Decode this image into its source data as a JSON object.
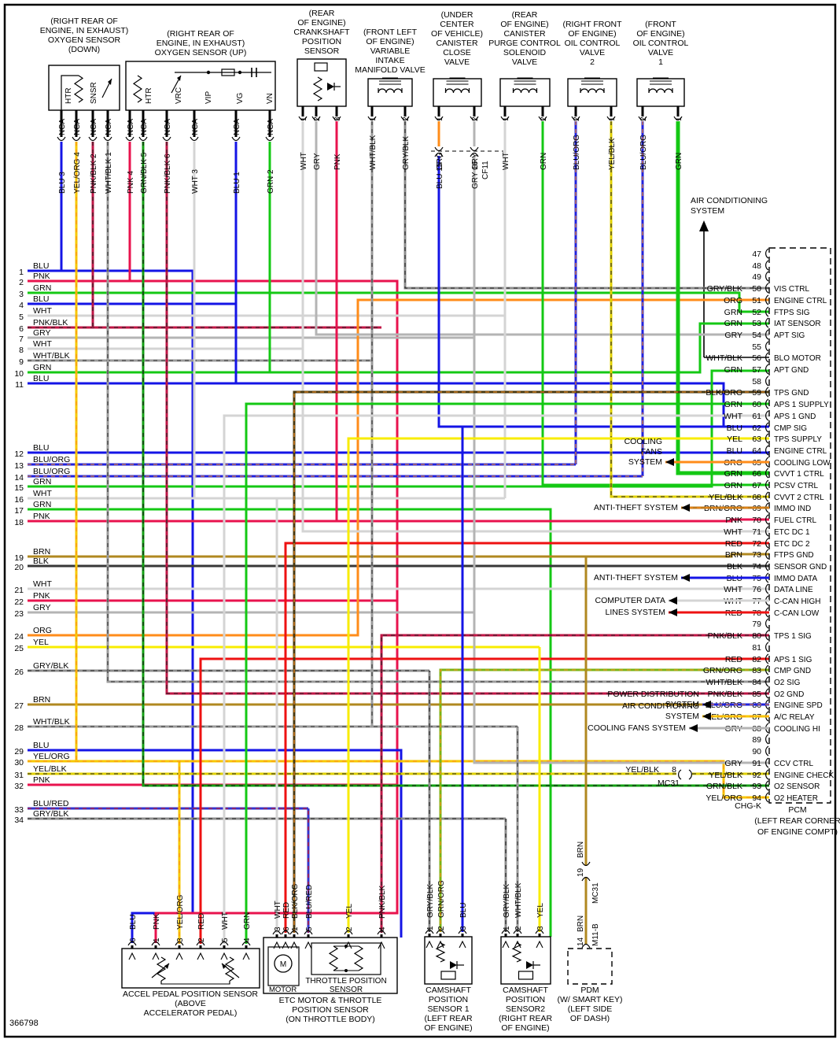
{
  "footer": {
    "id": "366798"
  },
  "colors": {
    "BLU": "#1414e6",
    "PNK": "#e8134e",
    "GRN": "#14c814",
    "WHT": "#d4d4d4",
    "GRY": "#b4b4b4",
    "BLK": "#383838",
    "RED": "#ee1111",
    "YEL": "#f8ec00",
    "ORG": "#ff8c1a",
    "BRN": "#b08820",
    "PNK/BLK": "#c01445",
    "WHT/BLK": "#9a9a9a",
    "GRY/BLK": "#8c8c8c",
    "BLU/ORG": "#2222dd",
    "BLU/RED": "#3333cc",
    "YEL/ORG": "#f6c800",
    "YEL/BLK": "#e0d000",
    "BLK/ORG": "#4a3a10",
    "BRN/ORG": "#c07818",
    "GRN/BLK": "#12a012",
    "GRN/ORG": "#7ab414"
  },
  "secondary": {
    "PNK/BLK": "#222222",
    "WHT/BLK": "#333333",
    "GRY/BLK": "#222222",
    "BLU/ORG": "#ff8c1a",
    "BLU/RED": "#dd1111",
    "YEL/ORG": "#ff8c1a",
    "YEL/BLK": "#222222",
    "BLK/ORG": "#ff8c1a",
    "BRN/ORG": "#ff8c1a",
    "GRN/BLK": "#111111",
    "GRN/ORG": "#ff8c1a"
  },
  "ac_system_top": {
    "lines": [
      "AIR CONDITIONING",
      "SYSTEM"
    ]
  },
  "top_components": [
    {
      "id": "o2down",
      "title": "(RIGHT REAR OF\nENGINE, IN EXHAUST)\nOXYGEN SENSOR\n(DOWN)",
      "internal": [
        "HTR",
        "SNSR"
      ],
      "wires": [
        {
          "pin": "3",
          "color": "BLU",
          "conn": "NCA"
        },
        {
          "pin": "4",
          "color": "YEL/ORG",
          "conn": "NCA"
        },
        {
          "pin": "2",
          "color": "PNK/BLK",
          "conn": "NCA"
        },
        {
          "pin": "1",
          "color": "WHT/BLK",
          "conn": "NCA"
        }
      ]
    },
    {
      "id": "o2up",
      "title": "(RIGHT REAR OF\nENGINE, IN EXHAUST)\nOXYGEN SENSOR (UP)",
      "internal": [
        "HTR",
        "VRC",
        "VIP",
        "VG",
        "VN"
      ],
      "wires": [
        {
          "pin": "4",
          "color": "PNK",
          "conn": "NCA"
        },
        {
          "pin": "5",
          "color": "GRN/BLK",
          "conn": "NCA"
        },
        {
          "pin": "6",
          "color": "PNK/BLK",
          "conn": "NCA"
        },
        {
          "pin": "3",
          "color": "WHT",
          "conn": "NCA"
        },
        {
          "pin": "1",
          "color": "BLU",
          "conn": "NCA"
        },
        {
          "pin": "2",
          "color": "GRN",
          "conn": "NCA"
        }
      ]
    },
    {
      "id": "ckp",
      "title": "(REAR\nOF ENGINE)\nCRANKSHAFT\nPOSITION\nSENSOR",
      "wires": [
        {
          "pin": "1",
          "color": "WHT"
        },
        {
          "pin": "2",
          "color": "GRY"
        },
        {
          "pin": "3",
          "color": "PNK"
        }
      ]
    },
    {
      "id": "vim",
      "title": "(FRONT LEFT\nOF ENGINE)\nVARIABLE\nINTAKE\nMANIFOLD VALVE",
      "wires": [
        {
          "pin": "1",
          "color": "WHT/BLK"
        },
        {
          "pin": "2",
          "color": "GRY/BLK"
        }
      ]
    },
    {
      "id": "ccv",
      "title": "(UNDER\nCENTER\nOF VEHICLE)\nCANISTER\nCLOSE\nVALVE",
      "wires": [
        {
          "pin": "1",
          "color": "ORG"
        },
        {
          "pin": "2",
          "color": "GRY"
        }
      ],
      "connector": {
        "label": "CF11",
        "below": [
          {
            "pin": "15",
            "color": "BLU"
          },
          {
            "pin": "16",
            "color": "GRY"
          }
        ]
      }
    },
    {
      "id": "pcsv",
      "title": "(REAR\nOF ENGINE)\nCANISTER\nPURGE CONTROL\nSOLENOID\nVALVE",
      "wires": [
        {
          "pin": "1",
          "color": "WHT"
        },
        {
          "pin": "2",
          "color": "GRN"
        }
      ]
    },
    {
      "id": "ocv2",
      "title": "(RIGHT FRONT\nOF ENGINE)\nOIL CONTROL\nVALVE\n2",
      "wires": [
        {
          "pin": "2",
          "color": "BLU/ORG"
        },
        {
          "pin": "1",
          "color": "YEL/BLK"
        }
      ]
    },
    {
      "id": "ocv1",
      "title": "(FRONT\nOF ENGINE)\nOIL CONTROL\nVALVE\n1",
      "wires": [
        {
          "pin": "2",
          "color": "BLU/ORG"
        },
        {
          "pin": "1",
          "color": "GRN"
        }
      ]
    }
  ],
  "bottom_components": [
    {
      "id": "app",
      "title": "ACCEL PEDAL POSITION SENSOR\n(ABOVE\nACCELERATOR PEDAL)",
      "wires": [
        {
          "pin": "6",
          "color": "BLU"
        },
        {
          "pin": "1",
          "color": "PNK"
        },
        {
          "pin": "3",
          "color": "YEL/ORG"
        },
        {
          "pin": "2",
          "color": "RED"
        },
        {
          "pin": "5",
          "color": "WHT"
        },
        {
          "pin": "4",
          "color": "GRN"
        }
      ]
    },
    {
      "id": "etc",
      "title": "ETC MOTOR & THROTTLE\nPOSITION SENSOR\n(ON THROTTLE BODY)",
      "internal": [
        "MOTOR",
        "THROTTLE POSITION",
        "SENSOR",
        "M"
      ],
      "wires": [
        {
          "pin": "3",
          "color": "WHT"
        },
        {
          "pin": "6",
          "color": "RED"
        },
        {
          "pin": "1",
          "color": "BLK/ORG"
        },
        {
          "pin": "5",
          "color": "BLU/RED"
        },
        {
          "pin": "2",
          "color": "YEL"
        },
        {
          "pin": "4",
          "color": "PNK/BLK"
        }
      ]
    },
    {
      "id": "cmp1",
      "title": "CAMSHAFT\nPOSITION\nSENSOR 1\n(LEFT REAR\nOF ENGINE)",
      "wires": [
        {
          "pin": "1",
          "color": "GRY/BLK"
        },
        {
          "pin": "2",
          "color": "GRN/ORG"
        },
        {
          "pin": "3",
          "color": "BLU"
        }
      ]
    },
    {
      "id": "cmp2",
      "title": "CAMSHAFT\nPOSITION\nSENSOR2\n(RIGHT REAR\nOF ENGINE)",
      "wires": [
        {
          "pin": "1",
          "color": "GRY/BLK"
        },
        {
          "pin": "2",
          "color": "WHT/BLK"
        },
        {
          "pin": "3",
          "color": "YEL"
        }
      ]
    },
    {
      "id": "pdm",
      "title": "PDM\n(W/ SMART KEY)\n(LEFT SIDE\nOF DASH)",
      "wires": [
        {
          "pin": "14",
          "color": "BRN"
        }
      ],
      "box_conn": {
        "pin": "14",
        "color": "BRN",
        "label": "M11-B"
      },
      "inline_connector": {
        "pin": "19",
        "label": "MC31",
        "color": "BRN"
      }
    }
  ],
  "left_pins": [
    {
      "n": "1",
      "color": "BLU"
    },
    {
      "n": "2",
      "color": "PNK"
    },
    {
      "n": "3",
      "color": "GRN"
    },
    {
      "n": "4",
      "color": "BLU"
    },
    {
      "n": "5",
      "color": "WHT"
    },
    {
      "n": "6",
      "color": "PNK/BLK"
    },
    {
      "n": "7",
      "color": "GRY"
    },
    {
      "n": "8",
      "color": "WHT"
    },
    {
      "n": "9",
      "color": "WHT/BLK"
    },
    {
      "n": "10",
      "color": "GRN"
    },
    {
      "n": "11",
      "color": "BLU"
    },
    {
      "n": "12",
      "color": "BLU"
    },
    {
      "n": "13",
      "color": "BLU/ORG"
    },
    {
      "n": "14",
      "color": "BLU/ORG"
    },
    {
      "n": "15",
      "color": "GRN"
    },
    {
      "n": "16",
      "color": "WHT"
    },
    {
      "n": "17",
      "color": "GRN"
    },
    {
      "n": "18",
      "color": "PNK"
    },
    {
      "n": "19",
      "color": "BRN"
    },
    {
      "n": "20",
      "color": "BLK"
    },
    {
      "n": "21",
      "color": "WHT"
    },
    {
      "n": "22",
      "color": "PNK"
    },
    {
      "n": "23",
      "color": "GRY"
    },
    {
      "n": "24",
      "color": "ORG"
    },
    {
      "n": "25",
      "color": "YEL"
    },
    {
      "n": "26",
      "color": "GRY/BLK"
    },
    {
      "n": "27",
      "color": "BRN"
    },
    {
      "n": "28",
      "color": "WHT/BLK"
    },
    {
      "n": "29",
      "color": "BLU"
    },
    {
      "n": "30",
      "color": "YEL/ORG"
    },
    {
      "n": "31",
      "color": "YEL/BLK"
    },
    {
      "n": "32",
      "color": "PNK"
    },
    {
      "n": "33",
      "color": "BLU/RED"
    },
    {
      "n": "34",
      "color": "GRY/BLK"
    }
  ],
  "pcm": {
    "title": "PCM\n(LEFT REAR CORNER\nOF ENGINE COMPT)",
    "chgk": "CHG-K",
    "inline92": {
      "color": "YEL/BLK",
      "pin": "8",
      "label": "MC31"
    },
    "pins": [
      {
        "n": "47"
      },
      {
        "n": "48"
      },
      {
        "n": "49"
      },
      {
        "n": "50",
        "color": "GRY/BLK",
        "label": "VIS CTRL"
      },
      {
        "n": "51",
        "color": "ORG",
        "label": "ENGINE CTRL"
      },
      {
        "n": "52",
        "color": "GRN",
        "label": "FTPS SIG"
      },
      {
        "n": "53",
        "color": "GRN",
        "label": "IAT SENSOR"
      },
      {
        "n": "54",
        "color": "GRY",
        "label": "APT SIG"
      },
      {
        "n": "55"
      },
      {
        "n": "56",
        "color": "WHT/BLK",
        "label": "BLO MOTOR"
      },
      {
        "n": "57",
        "color": "GRN",
        "label": "APT GND"
      },
      {
        "n": "58"
      },
      {
        "n": "59",
        "color": "BLK/ORG",
        "label": "TPS GND"
      },
      {
        "n": "60",
        "color": "GRN",
        "label": "APS 1 SUPPLY"
      },
      {
        "n": "61",
        "color": "WHT",
        "label": "APS 1 GND"
      },
      {
        "n": "62",
        "color": "BLU",
        "label": "CMP SIG"
      },
      {
        "n": "63",
        "color": "YEL",
        "label": "TPS SUPPLY"
      },
      {
        "n": "64",
        "color": "BLU",
        "label": "ENGINE CTRL"
      },
      {
        "n": "65",
        "color": "ORG",
        "label": "COOLING LOW",
        "system": [
          "COOLING",
          "FANS",
          "SYSTEM"
        ]
      },
      {
        "n": "66",
        "color": "GRN",
        "label": "CVVT 1 CTRL"
      },
      {
        "n": "67",
        "color": "GRN",
        "label": "PCSV CTRL"
      },
      {
        "n": "68",
        "color": "YEL/BLK",
        "label": "CVVT 2 CTRL"
      },
      {
        "n": "69",
        "color": "BRN/ORG",
        "label": "IMMO IND",
        "system": [
          "ANTI-THEFT SYSTEM"
        ]
      },
      {
        "n": "70",
        "color": "PNK",
        "label": "FUEL CTRL"
      },
      {
        "n": "71",
        "color": "WHT",
        "label": "ETC DC 1"
      },
      {
        "n": "72",
        "color": "RED",
        "label": "ETC DC 2"
      },
      {
        "n": "73",
        "color": "BRN",
        "label": "FTPS GND"
      },
      {
        "n": "74",
        "color": "BLK",
        "label": "SENSOR GND"
      },
      {
        "n": "75",
        "color": "BLU",
        "label": "IMMO DATA",
        "system": [
          "ANTI-THEFT SYSTEM"
        ]
      },
      {
        "n": "76",
        "color": "WHT",
        "label": "DATA LINE"
      },
      {
        "n": "77",
        "color": "WHT",
        "label": "C-CAN HIGH",
        "system": [
          "COMPUTER DATA"
        ]
      },
      {
        "n": "78",
        "color": "RED",
        "label": "C-CAN LOW",
        "system": [
          "LINES SYSTEM"
        ]
      },
      {
        "n": "79"
      },
      {
        "n": "80",
        "color": "PNK/BLK",
        "label": "TPS 1 SIG"
      },
      {
        "n": "81"
      },
      {
        "n": "82",
        "color": "RED",
        "label": "APS 1 SIG"
      },
      {
        "n": "83",
        "color": "GRN/ORG",
        "label": "CMP GND"
      },
      {
        "n": "84",
        "color": "WHT/BLK",
        "label": "O2 SIG"
      },
      {
        "n": "85",
        "color": "PNK/BLK",
        "label": "O2 GND"
      },
      {
        "n": "86",
        "color": "BLU/ORG",
        "label": "ENGINE SPD",
        "system": [
          "POWER DISTRIBUTION",
          "SYSTEM"
        ]
      },
      {
        "n": "87",
        "color": "YEL/ORG",
        "label": "A/C RELAY",
        "system": [
          "AIR CONDITIONING",
          "SYSTEM"
        ]
      },
      {
        "n": "88",
        "color": "GRY",
        "label": "COOLING HI",
        "system": [
          "COOLING FANS SYSTEM"
        ]
      },
      {
        "n": "89"
      },
      {
        "n": "90"
      },
      {
        "n": "91",
        "color": "GRY",
        "label": "CCV CTRL"
      },
      {
        "n": "92",
        "color": "YEL/BLK",
        "label": "ENGINE CHECK"
      },
      {
        "n": "93",
        "color": "GRN/BLK",
        "label": "O2 SENSOR"
      },
      {
        "n": "94",
        "color": "YEL/ORG",
        "label": "O2 HEATER"
      }
    ]
  }
}
